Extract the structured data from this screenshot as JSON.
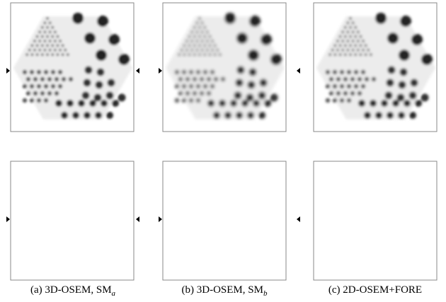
{
  "captions": [
    {
      "text": "(a) 3D-OSEM, SM",
      "sub": "a"
    },
    {
      "text": "(b) 3D-OSEM, SM",
      "sub": "b"
    },
    {
      "text": "(c) 2D-OSEM+FORE"
    }
  ]
}
